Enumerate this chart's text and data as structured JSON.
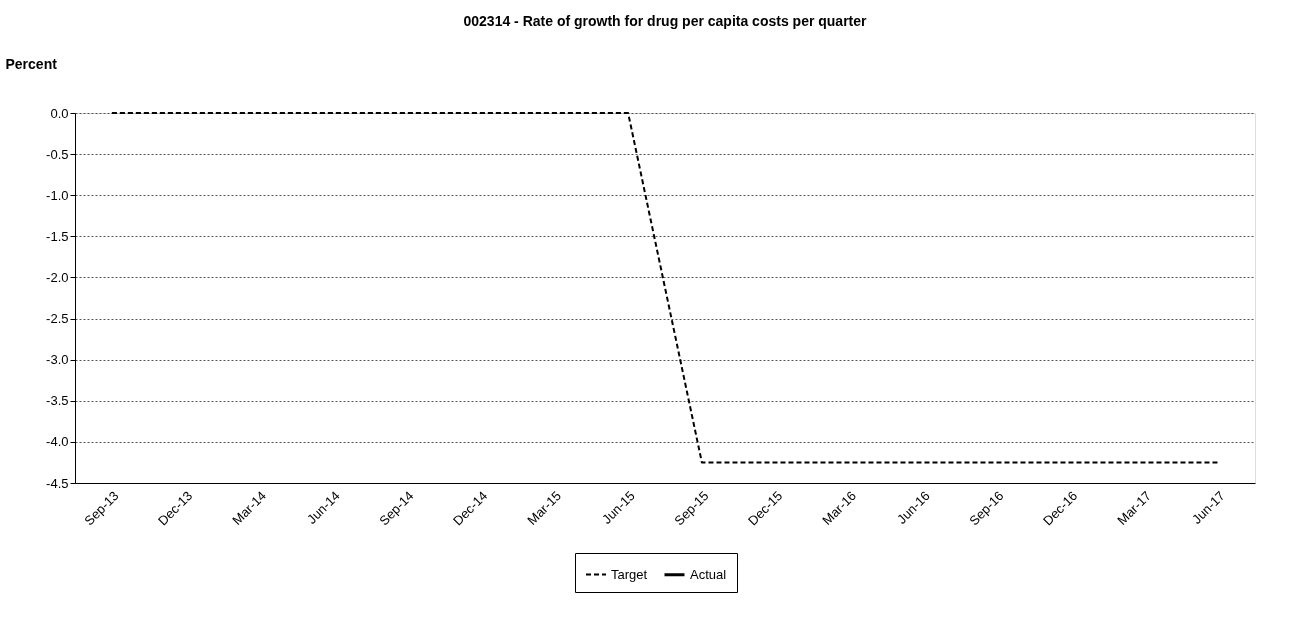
{
  "chart_data": {
    "type": "line",
    "title": "002314 - Rate of growth for drug per capita costs per quarter",
    "ylabel": "Percent",
    "categories": [
      "Sep-13",
      "Dec-13",
      "Mar-14",
      "Jun-14",
      "Sep-14",
      "Dec-14",
      "Mar-15",
      "Jun-15",
      "Sep-15",
      "Dec-15",
      "Mar-16",
      "Jun-16",
      "Sep-16",
      "Dec-16",
      "Mar-17",
      "Jun-17"
    ],
    "series": [
      {
        "name": "Target",
        "color": "#000000",
        "line_style": "dashed",
        "values": [
          0,
          0,
          0,
          0,
          0,
          0,
          0,
          0,
          -4.25,
          -4.25,
          -4.25,
          -4.25,
          -4.25,
          -4.25,
          -4.25,
          -4.25
        ]
      },
      {
        "name": "Actual",
        "color": "#000000",
        "line_style": "solid",
        "values": [
          null,
          null,
          null,
          null,
          null,
          null,
          null,
          null,
          null,
          null,
          null,
          null,
          null,
          null,
          null,
          null
        ]
      }
    ],
    "ylim": [
      -4.5,
      0
    ],
    "yticks": [
      {
        "value": 0,
        "label": "0.0"
      },
      {
        "value": -0.5,
        "label": "-0.5"
      },
      {
        "value": -1,
        "label": "-1.0"
      },
      {
        "value": -1.5,
        "label": "-1.5"
      },
      {
        "value": -2,
        "label": "-2.0"
      },
      {
        "value": -2.5,
        "label": "-2.5"
      },
      {
        "value": -3,
        "label": "-3.0"
      },
      {
        "value": -3.5,
        "label": "-3.5"
      },
      {
        "value": -4,
        "label": "-4.0"
      },
      {
        "value": -4.5,
        "label": "-4.5"
      }
    ],
    "grid": "y",
    "legend": "bottom",
    "marker": "none"
  }
}
